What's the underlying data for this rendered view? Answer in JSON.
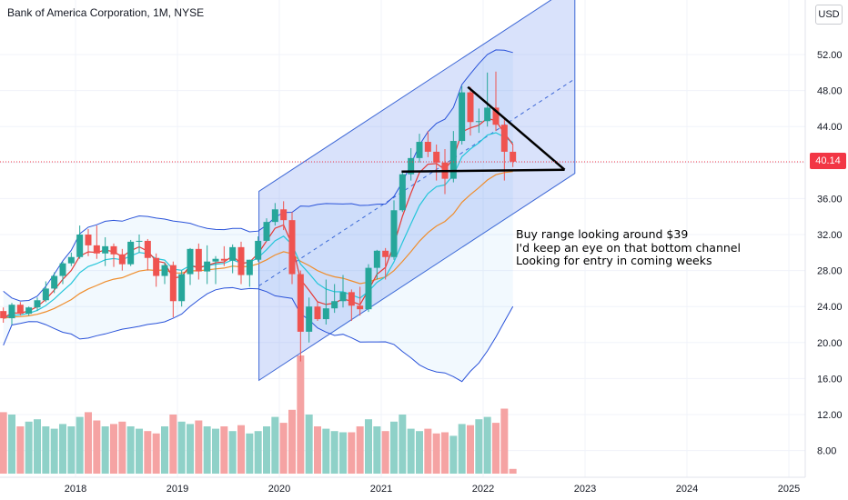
{
  "header": {
    "title": "Bank of America Corporation, 1M, NYSE",
    "currency": "USD"
  },
  "last_price": "40.14",
  "annotation": {
    "lines": [
      "Buy range looking around $39",
      "I'd keep an eye on that bottom channel",
      "Looking for entry in coming weeks"
    ]
  },
  "colors": {
    "up": "#26a69a",
    "down": "#ef5350",
    "vol_up": "#8fd1c8",
    "vol_down": "#f5a3a3",
    "channel": "#3d67d6",
    "ma_fast": "#e53935",
    "ma_mid": "#26c6da",
    "ma_slow": "#ef8d2c",
    "bb": "#2952d9"
  },
  "chart_data": {
    "type": "candlestick",
    "symbol": "BAC",
    "interval": "1M",
    "ylim": [
      6,
      56
    ],
    "yticks": [
      "52.00",
      "48.00",
      "44.00",
      "40.00",
      "36.00",
      "32.00",
      "28.00",
      "24.00",
      "20.00",
      "16.00",
      "12.00",
      "8.00"
    ],
    "ytick_values": [
      52,
      48,
      44,
      40,
      36,
      32,
      28,
      24,
      20,
      16,
      12,
      8
    ],
    "xticks": [
      "2018",
      "2019",
      "2020",
      "2021",
      "2022",
      "2023",
      "2024",
      "2025"
    ],
    "start_month": "2017-04",
    "candles": [
      [
        23.5,
        23.9,
        22.2,
        22.7
      ],
      [
        22.7,
        24.4,
        22.0,
        24.2
      ],
      [
        24.2,
        24.5,
        23.0,
        23.2
      ],
      [
        23.2,
        24.0,
        23.0,
        23.9
      ],
      [
        23.9,
        25.0,
        23.5,
        24.7
      ],
      [
        24.7,
        26.8,
        24.5,
        26.0
      ],
      [
        26.0,
        27.8,
        25.5,
        27.4
      ],
      [
        27.4,
        29.0,
        26.5,
        28.8
      ],
      [
        28.8,
        30.0,
        28.5,
        29.5
      ],
      [
        29.5,
        33.0,
        29.3,
        32.0
      ],
      [
        32.0,
        32.6,
        29.6,
        30.8
      ],
      [
        30.8,
        33.0,
        29.3,
        29.9
      ],
      [
        29.9,
        31.7,
        28.5,
        30.7
      ],
      [
        30.7,
        31.0,
        28.4,
        29.8
      ],
      [
        29.8,
        30.4,
        28.0,
        28.7
      ],
      [
        28.7,
        31.4,
        28.5,
        31.2
      ],
      [
        31.2,
        32.0,
        30.0,
        31.3
      ],
      [
        31.3,
        31.5,
        28.0,
        29.4
      ],
      [
        29.4,
        29.9,
        26.2,
        27.4
      ],
      [
        27.4,
        28.9,
        26.5,
        28.6
      ],
      [
        28.6,
        29.0,
        22.8,
        24.6
      ],
      [
        24.6,
        28.0,
        24.0,
        27.6
      ],
      [
        27.6,
        30.5,
        26.4,
        30.4
      ],
      [
        30.4,
        31.0,
        27.0,
        27.9
      ],
      [
        27.9,
        30.8,
        26.5,
        29.0
      ],
      [
        29.0,
        29.6,
        26.5,
        29.3
      ],
      [
        29.3,
        30.7,
        28.5,
        29.1
      ],
      [
        29.1,
        30.9,
        27.7,
        30.6
      ],
      [
        30.6,
        31.2,
        26.5,
        27.5
      ],
      [
        27.5,
        29.2,
        26.2,
        29.2
      ],
      [
        29.2,
        31.8,
        29.0,
        31.3
      ],
      [
        31.3,
        33.8,
        31.2,
        33.4
      ],
      [
        33.4,
        35.5,
        33.0,
        34.8
      ],
      [
        34.8,
        35.7,
        32.5,
        33.6
      ],
      [
        33.6,
        34.5,
        26.5,
        27.6
      ],
      [
        27.6,
        28.0,
        17.9,
        21.2
      ],
      [
        21.2,
        25.0,
        20.0,
        24.0
      ],
      [
        24.0,
        24.5,
        22.4,
        22.6
      ],
      [
        22.6,
        27.0,
        22.0,
        23.8
      ],
      [
        23.8,
        26.5,
        23.3,
        24.6
      ],
      [
        24.6,
        27.5,
        23.9,
        25.6
      ],
      [
        25.6,
        25.9,
        22.4,
        24.1
      ],
      [
        24.1,
        26.2,
        23.0,
        23.7
      ],
      [
        23.7,
        28.7,
        23.4,
        28.3
      ],
      [
        28.3,
        30.3,
        27.0,
        30.2
      ],
      [
        30.2,
        30.5,
        27.0,
        29.5
      ],
      [
        29.5,
        35.8,
        29.2,
        34.7
      ],
      [
        34.7,
        39.0,
        34.5,
        38.7
      ],
      [
        38.7,
        41.6,
        38.0,
        40.5
      ],
      [
        40.5,
        43.2,
        40.0,
        42.3
      ],
      [
        42.3,
        43.5,
        40.6,
        41.2
      ],
      [
        41.2,
        42.0,
        38.0,
        40.0
      ],
      [
        40.0,
        41.5,
        36.5,
        38.2
      ],
      [
        38.2,
        43.5,
        37.8,
        42.4
      ],
      [
        42.4,
        48.5,
        42.0,
        47.8
      ],
      [
        47.8,
        48.4,
        43.0,
        44.5
      ],
      [
        44.5,
        46.0,
        43.3,
        44.6
      ],
      [
        44.6,
        50.0,
        44.0,
        46.1
      ],
      [
        46.1,
        50.1,
        43.5,
        44.2
      ],
      [
        44.2,
        45.0,
        38.0,
        41.2
      ],
      [
        41.2,
        42.0,
        39.5,
        40.1
      ]
    ],
    "volume_relative": [
      0.52,
      0.5,
      0.4,
      0.44,
      0.46,
      0.4,
      0.38,
      0.42,
      0.4,
      0.48,
      0.52,
      0.45,
      0.4,
      0.42,
      0.44,
      0.4,
      0.38,
      0.36,
      0.34,
      0.4,
      0.5,
      0.44,
      0.42,
      0.45,
      0.4,
      0.38,
      0.4,
      0.36,
      0.41,
      0.34,
      0.36,
      0.4,
      0.48,
      0.43,
      0.54,
      1.0,
      0.5,
      0.4,
      0.38,
      0.36,
      0.35,
      0.35,
      0.4,
      0.46,
      0.4,
      0.36,
      0.44,
      0.5,
      0.38,
      0.36,
      0.38,
      0.34,
      0.35,
      0.32,
      0.42,
      0.41,
      0.46,
      0.48,
      0.43,
      0.55,
      0.04
    ],
    "channel": {
      "upper_start": [
        2019.8,
        36.8
      ],
      "upper_end": [
        2022.9,
        59.8
      ],
      "lower_start": [
        2019.8,
        15.8
      ],
      "lower_end": [
        2022.9,
        38.8
      ]
    },
    "trendlines": [
      {
        "from": [
          2021.2,
          39.0
        ],
        "to": [
          2022.8,
          39.2
        ]
      },
      {
        "from": [
          2021.85,
          48.4
        ],
        "to": [
          2022.8,
          39.2
        ]
      }
    ]
  }
}
